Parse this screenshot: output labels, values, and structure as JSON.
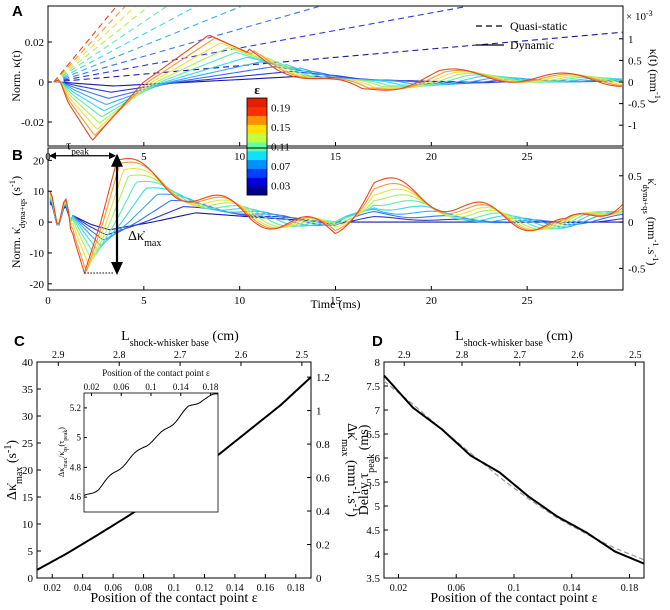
{
  "chart_data": [
    {
      "panel": "A",
      "type": "line",
      "ylabel_left": "Norm. κ(t)",
      "ylabel_right": "κ(t) (mm",
      "ylabel_right_sup": "-1",
      "ylabel_right_tail": ")",
      "multiplier": "× 10",
      "multiplier_sup": "-3",
      "xlim": [
        0,
        30
      ],
      "ylim": [
        -0.032,
        0.038
      ],
      "x_ticks": [
        "0",
        "5",
        "10",
        "15",
        "20",
        "25"
      ],
      "y_ticks_left": [
        "0.02",
        "0",
        "-0.02"
      ],
      "y_ticks_right": [
        "1",
        "0.5",
        "0",
        "-0.5",
        "-1"
      ],
      "legend": [
        "Quasi-static",
        "Dynamic"
      ],
      "legend_placement": "top-right",
      "series_eps": [
        0.01,
        0.03,
        0.05,
        0.07,
        0.09,
        0.11,
        0.13,
        0.15,
        0.17,
        0.19
      ],
      "quasi_static_slopes": [
        0.00083,
        0.00173,
        0.00267,
        0.00375,
        0.0049,
        0.0061,
        0.0072,
        0.0083,
        0.0094,
        0.0106
      ],
      "dynamic_min_time": [
        3.4,
        3.28,
        3.16,
        3.04,
        2.92,
        2.8,
        2.68,
        2.56,
        2.44,
        2.32
      ],
      "dynamic_min_value": [
        -0.002,
        -0.0051,
        -0.0082,
        -0.0113,
        -0.0144,
        -0.0175,
        -0.0206,
        -0.0237,
        -0.0268,
        -0.0292
      ],
      "dynamic_peak_value": [
        0.003,
        0.0053,
        0.0077,
        0.0101,
        0.0124,
        0.0148,
        0.0172,
        0.0196,
        0.0219,
        0.0235
      ],
      "dynamic_peak_time": [
        13.5,
        12.7,
        11.8,
        11.1,
        10.4,
        9.8,
        9.4,
        9.0,
        8.7,
        8.4
      ]
    },
    {
      "panel": "B",
      "type": "line",
      "ylabel_left": "Norm. κ̇",
      "ylabel_left_sub": "dyna+qs",
      "ylabel_left_tail": "(s",
      "ylabel_left_sup": "-1",
      "ylabel_right": "κ̇",
      "ylabel_right_sub": "dyna+qs",
      "ylabel_right_tail": "(mm",
      "ylabel_right_sup": "-1",
      "ylabel_right_mid": ".s",
      "xlabel": "Time (ms)",
      "xlim": [
        0,
        30
      ],
      "ylim": [
        -22,
        24
      ],
      "x_ticks": [
        "0",
        "5",
        "10",
        "15",
        "20",
        "25"
      ],
      "y_ticks_left": [
        "20",
        "10",
        "0",
        "-10",
        "-20"
      ],
      "y_ticks_right": [
        "0.5",
        "0",
        "-0.5"
      ],
      "annotation_tau": "τ",
      "annotation_tau_sub": "peak",
      "annotation_delta": "Δκ̇",
      "annotation_delta_sub": "max",
      "min_time": [
        3.2,
        3.05,
        2.9,
        2.75,
        2.6,
        2.45,
        2.3,
        2.15,
        2.0,
        1.9
      ],
      "min_value": [
        -2.5,
        -4.2,
        -5.9,
        -7.6,
        -9.3,
        -11.0,
        -12.7,
        -14.4,
        -16.1,
        -16.5
      ],
      "max_time": [
        7.7,
        7.05,
        6.4,
        5.7,
        5.1,
        4.6,
        4.2,
        3.95,
        3.75,
        3.6
      ],
      "max_value": [
        3.0,
        5.0,
        7.0,
        9.0,
        11.0,
        13.0,
        15.0,
        17.0,
        19.0,
        20.0
      ]
    },
    {
      "panel": "C",
      "type": "line",
      "xlabel": "Position of the contact point ε",
      "top_xlabel": "L",
      "top_xlabel_sub": "shock-whisker base",
      "top_xlabel_tail": "(cm)",
      "ylabel_left": "Δκ̇",
      "ylabel_left_sub": "max",
      "ylabel_left_tail": "(s",
      "ylabel_left_sup": "-1",
      "ylabel_left_close": ")",
      "ylabel_right": "Δκ̇",
      "ylabel_right_sub": "max",
      "ylabel_right_tail": "(mm",
      "ylabel_right_sup": "-1",
      "ylabel_right_mid": ".s",
      "ylabel_right_close": ")",
      "xlim": [
        0.01,
        0.19
      ],
      "ylim": [
        0,
        40
      ],
      "x_ticks": [
        "0.02",
        "0.04",
        "0.06",
        "0.08",
        "0.1",
        "0.12",
        "0.14",
        "0.16",
        "0.18"
      ],
      "y_ticks_left": [
        "0",
        "5",
        "10",
        "15",
        "20",
        "25",
        "30",
        "35",
        "40"
      ],
      "y_ticks_right": [
        "0",
        "0.2",
        "0.4",
        "0.6",
        "0.8",
        "1",
        "1.2"
      ],
      "top_ticks": [
        "2.9",
        "2.8",
        "2.7",
        "2.6",
        "2.5"
      ],
      "x": [
        0.01,
        0.03,
        0.05,
        0.07,
        0.09,
        0.11,
        0.13,
        0.15,
        0.17,
        0.19
      ],
      "y": [
        1.5,
        4.6,
        8.0,
        11.5,
        15.2,
        19.0,
        23.0,
        27.5,
        32.0,
        37.2
      ],
      "inset": {
        "title": "Position of the contact point ε",
        "x_ticks": [
          "0.02",
          "0.06",
          "0.1",
          "0.14",
          "0.18"
        ],
        "y_ticks": [
          "5.2",
          "5",
          "4.8",
          "4.6"
        ],
        "ylabel": "Δκ̇",
        "ylabel_sub": "max",
        "ylabel_mid": "/κ̇",
        "ylabel_sub2": "qs",
        "ylabel_tail": "(τ",
        "ylabel_sub3": "peak",
        "ylabel_close": ")",
        "xlim": [
          0.01,
          0.19
        ],
        "ylim": [
          4.5,
          5.3
        ],
        "x": [
          0.01,
          0.03,
          0.05,
          0.07,
          0.09,
          0.11,
          0.13,
          0.15,
          0.17,
          0.19
        ],
        "y": [
          4.6,
          4.66,
          4.76,
          4.85,
          4.94,
          5.01,
          5.1,
          5.2,
          5.26,
          5.29
        ]
      }
    },
    {
      "panel": "D",
      "type": "line",
      "xlabel": "Position of the contact point ε",
      "top_xlabel": "L",
      "top_xlabel_sub": "shock-whisker base",
      "top_xlabel_tail": "(cm)",
      "ylabel": "Delay τ",
      "ylabel_sub": "peak",
      "ylabel_tail": "(ms)",
      "xlim": [
        0.01,
        0.19
      ],
      "ylim": [
        3.5,
        8
      ],
      "x_ticks": [
        "0.02",
        "0.06",
        "0.1",
        "0.14",
        "0.18"
      ],
      "y_ticks": [
        "3.5",
        "4",
        "4.5",
        "5",
        "5.5",
        "6",
        "6.5",
        "7",
        "7.5",
        "8"
      ],
      "top_ticks": [
        "2.9",
        "2.8",
        "2.7",
        "2.6",
        "2.5"
      ],
      "x": [
        0.01,
        0.03,
        0.05,
        0.07,
        0.09,
        0.11,
        0.13,
        0.15,
        0.17,
        0.19
      ],
      "y": [
        7.72,
        7.05,
        6.6,
        6.05,
        5.7,
        5.2,
        4.78,
        4.45,
        4.05,
        3.8
      ],
      "fit_y": [
        7.6,
        7.12,
        6.6,
        6.1,
        5.6,
        5.15,
        4.75,
        4.42,
        4.12,
        3.88
      ]
    }
  ],
  "colorbar": {
    "label": "ε",
    "ticks": [
      "0.19",
      "0.15",
      "0.11",
      "0.07",
      "0.03"
    ],
    "colors": [
      "#00008f",
      "#0000d8",
      "#0040ff",
      "#0090ff",
      "#10e0ff",
      "#60ffa0",
      "#c0ff40",
      "#ffe000",
      "#ff9000",
      "#ff3000",
      "#e02000"
    ]
  },
  "panel_letters": [
    "A",
    "B",
    "C",
    "D"
  ],
  "series_colors": [
    "#1a1aa0",
    "#2b3bd6",
    "#3a74f0",
    "#3aa8f5",
    "#3ad8ea",
    "#60eab0",
    "#b0ee60",
    "#f0e040",
    "#f49a30",
    "#e24a20"
  ]
}
